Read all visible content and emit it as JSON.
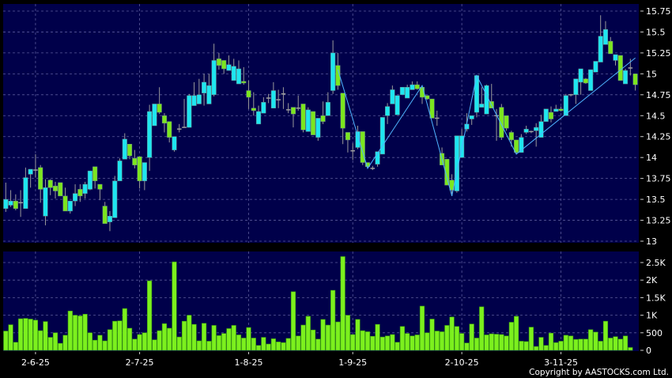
{
  "chart_data": [
    {
      "type": "candlestick",
      "ylim": [
        13,
        15.75
      ],
      "yticks": [
        "13",
        "13.25",
        "13.5",
        "13.75",
        "14",
        "14.25",
        "14.5",
        "14.75",
        "15",
        "15.25",
        "15.5",
        "15.75"
      ],
      "grid": true,
      "colors": {
        "background": "#00004a",
        "up": "#1ee6f0",
        "down": "#7ce61e",
        "zigzag": "#4fb4ff"
      },
      "candles_ohlc": [
        [
          13.39,
          13.7,
          13.35,
          13.5
        ],
        [
          13.43,
          13.61,
          13.41,
          13.48
        ],
        [
          13.48,
          13.56,
          13.37,
          13.39
        ],
        [
          13.46,
          13.61,
          13.29,
          13.46
        ],
        [
          13.39,
          13.88,
          13.39,
          13.76
        ],
        [
          13.8,
          13.86,
          13.64,
          13.86
        ],
        [
          13.85,
          14.04,
          13.76,
          13.85
        ],
        [
          13.88,
          13.91,
          13.46,
          13.62
        ],
        [
          13.3,
          13.74,
          13.19,
          13.64
        ],
        [
          13.73,
          13.74,
          13.55,
          13.64
        ],
        [
          13.66,
          13.71,
          13.51,
          13.6
        ],
        [
          13.7,
          13.7,
          13.54,
          13.54
        ],
        [
          13.54,
          13.64,
          13.36,
          13.36
        ],
        [
          13.36,
          13.48,
          13.33,
          13.48
        ],
        [
          13.48,
          13.68,
          13.42,
          13.57
        ],
        [
          13.62,
          13.68,
          13.47,
          13.54
        ],
        [
          13.57,
          13.71,
          13.51,
          13.68
        ],
        [
          13.62,
          13.84,
          13.61,
          13.84
        ],
        [
          13.89,
          13.89,
          13.63,
          13.72
        ],
        [
          13.68,
          13.68,
          13.49,
          13.62
        ],
        [
          13.42,
          13.47,
          13.21,
          13.21
        ],
        [
          13.23,
          13.36,
          13.12,
          13.3
        ],
        [
          13.28,
          13.78,
          13.28,
          13.72
        ],
        [
          13.72,
          13.99,
          13.72,
          13.96
        ],
        [
          13.98,
          14.29,
          13.98,
          14.22
        ],
        [
          14.16,
          14.16,
          13.98,
          14.02
        ],
        [
          13.99,
          14.09,
          13.87,
          13.91
        ],
        [
          14.01,
          14.01,
          13.63,
          13.72
        ],
        [
          13.72,
          13.94,
          13.61,
          13.94
        ],
        [
          14.0,
          14.63,
          13.84,
          14.55
        ],
        [
          14.38,
          14.64,
          14.38,
          14.64
        ],
        [
          14.64,
          14.84,
          14.52,
          14.54
        ],
        [
          14.5,
          14.53,
          14.3,
          14.41
        ],
        [
          14.43,
          14.43,
          14.18,
          14.24
        ],
        [
          14.09,
          14.25,
          14.07,
          14.25
        ],
        [
          14.34,
          14.4,
          14.3,
          14.34
        ],
        [
          14.36,
          14.7,
          14.36,
          14.36
        ],
        [
          14.36,
          14.76,
          14.36,
          14.74
        ],
        [
          14.62,
          14.9,
          14.62,
          14.74
        ],
        [
          14.64,
          14.94,
          14.64,
          14.75
        ],
        [
          14.77,
          15.0,
          14.62,
          14.9
        ],
        [
          14.64,
          15.0,
          14.64,
          14.86
        ],
        [
          14.75,
          15.36,
          14.73,
          15.16
        ],
        [
          15.18,
          15.25,
          15.05,
          15.1
        ],
        [
          15.16,
          15.16,
          15.0,
          15.06
        ],
        [
          15.04,
          15.22,
          15.04,
          15.11
        ],
        [
          14.92,
          15.18,
          14.92,
          15.09
        ],
        [
          14.88,
          15.16,
          14.88,
          15.06
        ],
        [
          14.91,
          15.08,
          14.87,
          14.89
        ],
        [
          14.8,
          14.92,
          14.58,
          14.72
        ],
        [
          14.59,
          14.78,
          14.5,
          14.56
        ],
        [
          14.4,
          14.62,
          14.4,
          14.55
        ],
        [
          14.53,
          14.72,
          14.53,
          14.66
        ],
        [
          14.71,
          14.76,
          14.65,
          14.71
        ],
        [
          14.59,
          14.9,
          14.59,
          14.8
        ],
        [
          14.69,
          14.81,
          14.59,
          14.69
        ],
        [
          14.76,
          14.84,
          14.58,
          14.76
        ],
        [
          14.57,
          14.65,
          14.53,
          14.57
        ],
        [
          14.6,
          14.6,
          14.36,
          14.52
        ],
        [
          14.59,
          14.74,
          14.56,
          14.59
        ],
        [
          14.64,
          14.64,
          14.3,
          14.33
        ],
        [
          14.31,
          14.6,
          14.31,
          14.57
        ],
        [
          14.55,
          14.55,
          14.27,
          14.27
        ],
        [
          14.24,
          14.47,
          14.2,
          14.47
        ],
        [
          14.5,
          14.67,
          14.4,
          14.43
        ],
        [
          14.5,
          14.78,
          14.5,
          14.66
        ],
        [
          14.8,
          15.4,
          14.76,
          15.25
        ],
        [
          15.1,
          15.25,
          14.81,
          14.86
        ],
        [
          14.77,
          14.77,
          14.16,
          14.35
        ],
        [
          14.3,
          14.3,
          14.06,
          14.21
        ],
        [
          14.08,
          14.17,
          13.97,
          14.08
        ],
        [
          14.12,
          14.38,
          14.1,
          14.31
        ],
        [
          14.31,
          14.31,
          13.91,
          13.94
        ],
        [
          13.94,
          13.94,
          13.87,
          13.89
        ],
        [
          13.87,
          13.9,
          13.85,
          13.87
        ],
        [
          13.92,
          14.07,
          13.89,
          14.07
        ],
        [
          14.04,
          14.48,
          14.04,
          14.48
        ],
        [
          14.5,
          14.65,
          14.4,
          14.61
        ],
        [
          14.64,
          14.86,
          14.64,
          14.81
        ],
        [
          14.51,
          14.74,
          14.51,
          14.74
        ],
        [
          14.75,
          14.84,
          14.75,
          14.84
        ],
        [
          14.71,
          14.87,
          14.71,
          14.84
        ],
        [
          14.81,
          14.91,
          14.81,
          14.87
        ],
        [
          14.87,
          14.91,
          14.81,
          14.82
        ],
        [
          14.84,
          14.84,
          14.64,
          14.72
        ],
        [
          14.74,
          14.74,
          14.69,
          14.7
        ],
        [
          14.7,
          14.7,
          14.47,
          14.47
        ],
        [
          14.47,
          14.56,
          14.38,
          14.47
        ],
        [
          14.05,
          14.12,
          13.91,
          13.91
        ],
        [
          13.98,
          13.98,
          13.67,
          13.67
        ],
        [
          13.73,
          13.8,
          13.54,
          13.61
        ],
        [
          13.6,
          14.26,
          13.58,
          14.26
        ],
        [
          14.0,
          14.34,
          14.0,
          14.26
        ],
        [
          14.34,
          14.53,
          14.31,
          14.4
        ],
        [
          14.46,
          14.5,
          14.39,
          14.5
        ],
        [
          14.54,
          14.98,
          14.48,
          14.98
        ],
        [
          14.6,
          14.84,
          14.6,
          14.64
        ],
        [
          14.52,
          14.87,
          14.52,
          14.86
        ],
        [
          14.67,
          14.88,
          14.59,
          14.59
        ],
        [
          14.5,
          14.58,
          14.2,
          14.5
        ],
        [
          14.6,
          14.64,
          14.21,
          14.24
        ],
        [
          14.5,
          14.5,
          14.32,
          14.35
        ],
        [
          14.3,
          14.32,
          14.13,
          14.21
        ],
        [
          14.21,
          14.21,
          14.04,
          14.06
        ],
        [
          14.06,
          14.28,
          14.06,
          14.24
        ],
        [
          14.3,
          14.38,
          14.28,
          14.34
        ],
        [
          14.31,
          14.32,
          14.29,
          14.31
        ],
        [
          14.32,
          14.41,
          14.13,
          14.36
        ],
        [
          14.24,
          14.51,
          14.24,
          14.43
        ],
        [
          14.43,
          14.58,
          14.43,
          14.58
        ],
        [
          14.54,
          14.61,
          14.42,
          14.46
        ],
        [
          14.55,
          14.63,
          14.55,
          14.58
        ],
        [
          14.58,
          14.61,
          14.55,
          14.56
        ],
        [
          14.5,
          14.76,
          14.5,
          14.74
        ],
        [
          14.75,
          14.76,
          14.73,
          14.75
        ],
        [
          14.75,
          14.94,
          14.64,
          14.94
        ],
        [
          14.9,
          15.06,
          14.75,
          15.06
        ],
        [
          14.94,
          14.95,
          14.88,
          14.89
        ],
        [
          14.8,
          15.05,
          14.8,
          15.05
        ],
        [
          15.02,
          15.15,
          15.02,
          15.15
        ],
        [
          15.14,
          15.7,
          15.14,
          15.45
        ],
        [
          15.35,
          15.63,
          15.35,
          15.53
        ],
        [
          15.39,
          15.44,
          15.24,
          15.24
        ],
        [
          15.16,
          15.23,
          15.1,
          15.23
        ],
        [
          15.22,
          15.22,
          14.92,
          14.92
        ],
        [
          14.88,
          15.06,
          14.88,
          15.04
        ],
        [
          15.07,
          15.18,
          14.98,
          15.07
        ],
        [
          15.0,
          15.0,
          14.8,
          14.87
        ]
      ],
      "zigzag": [
        [
          68,
          15.05
        ],
        [
          74,
          13.87
        ],
        [
          85,
          14.86
        ],
        [
          91,
          13.54
        ],
        [
          96,
          14.98
        ],
        [
          104,
          14.04
        ],
        [
          128,
          15.19
        ]
      ],
      "xticks": [
        {
          "label": "2-6-25",
          "index": 7
        },
        {
          "label": "2-7-25",
          "index": 28
        },
        {
          "label": "1-8-25",
          "index": 50
        },
        {
          "label": "1-9-25",
          "index": 71
        },
        {
          "label": "2-10-25",
          "index": 93
        },
        {
          "label": "3-11-25",
          "index": 113
        }
      ]
    },
    {
      "type": "bar",
      "ylim": [
        0,
        2700
      ],
      "yticks": [
        {
          "label": "0",
          "value": 0
        },
        {
          "label": "500",
          "value": 500
        },
        {
          "label": "1K",
          "value": 1000
        },
        {
          "label": "1.5K",
          "value": 1500
        },
        {
          "label": "2K",
          "value": 2000
        },
        {
          "label": "2.5K",
          "value": 2500
        }
      ],
      "grid": true,
      "colors": {
        "bar": "#7cf01e"
      },
      "values": [
        550,
        730,
        230,
        900,
        910,
        890,
        860,
        560,
        820,
        370,
        500,
        200,
        430,
        1120,
        1000,
        980,
        1030,
        500,
        290,
        430,
        270,
        590,
        830,
        840,
        1190,
        630,
        320,
        450,
        500,
        1980,
        300,
        560,
        760,
        630,
        2520,
        380,
        830,
        1000,
        740,
        270,
        770,
        260,
        710,
        420,
        480,
        620,
        710,
        440,
        350,
        650,
        350,
        140,
        370,
        180,
        330,
        240,
        220,
        340,
        1670,
        410,
        720,
        970,
        580,
        320,
        880,
        720,
        1710,
        810,
        2670,
        1000,
        450,
        880,
        560,
        530,
        400,
        740,
        380,
        410,
        450,
        230,
        680,
        480,
        410,
        440,
        1260,
        500,
        890,
        550,
        530,
        710,
        950,
        680,
        480,
        210,
        750,
        350,
        1240,
        440,
        470,
        460,
        450,
        410,
        800,
        970,
        260,
        250,
        660,
        110,
        370,
        140,
        490,
        220,
        260,
        430,
        410,
        310,
        320,
        320,
        590,
        520,
        260,
        830,
        350,
        390,
        320,
        410,
        80
      ]
    }
  ],
  "footer": {
    "copyright": "Copyright by AASTOCKS.com Ltd."
  }
}
